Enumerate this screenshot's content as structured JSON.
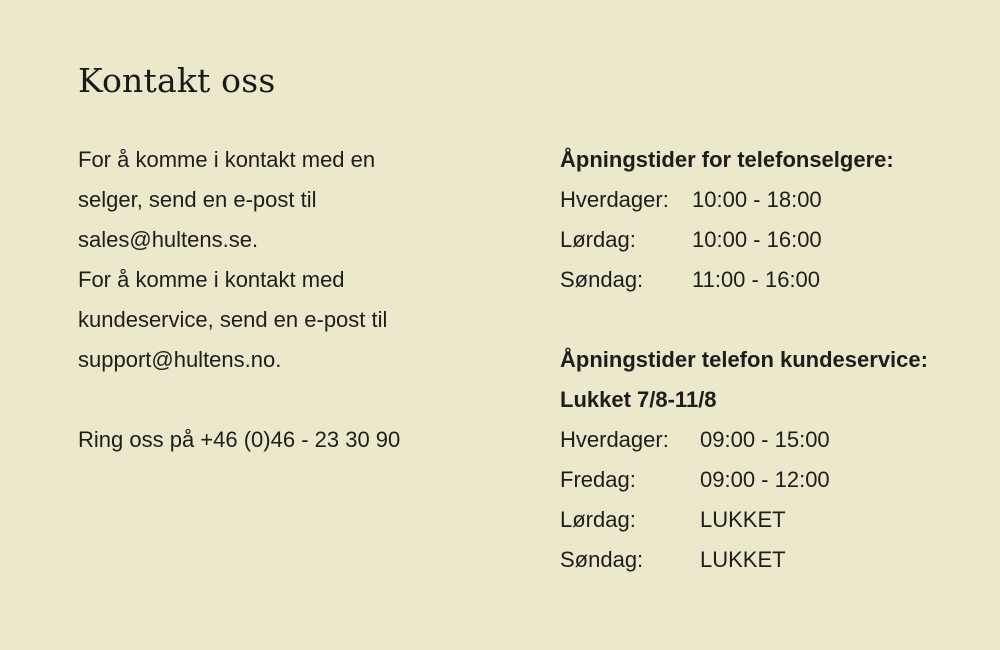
{
  "page": {
    "title": "Kontakt oss",
    "background_color": "#ece8cb",
    "text_color": "#1d1d1b"
  },
  "contact": {
    "lines": [
      "For å komme i kontakt med en",
      "selger, send en e-post til",
      "sales@hultens.se.",
      "For å komme i kontakt med",
      "kundeservice, send en e-post til",
      "support@hultens.no."
    ],
    "sales_email": "sales@hultens.se",
    "support_email": "support@hultens.no",
    "phone_line": "Ring oss på +46 (0)46 - 23 30 90",
    "phone_number": "+46 (0)46 - 23 30 90"
  },
  "hours": {
    "sales": {
      "heading": "Åpningstider for telefonselgere:",
      "rows": [
        {
          "day": "Hverdager:",
          "time": "10:00 - 18:00"
        },
        {
          "day": "Lørdag:",
          "time": "10:00 - 16:00"
        },
        {
          "day": "Søndag:",
          "time": "11:00 - 16:00"
        }
      ]
    },
    "customer_service": {
      "heading": "Åpningstider telefon kundeservice:",
      "closed_notice": "Lukket 7/8-11/8",
      "rows": [
        {
          "day": "Hverdager:",
          "time": "09:00 - 15:00"
        },
        {
          "day": "Fredag:",
          "time": "09:00 - 12:00"
        },
        {
          "day": "Lørdag:",
          "time": "LUKKET"
        },
        {
          "day": "Søndag:",
          "time": "LUKKET"
        }
      ]
    }
  }
}
